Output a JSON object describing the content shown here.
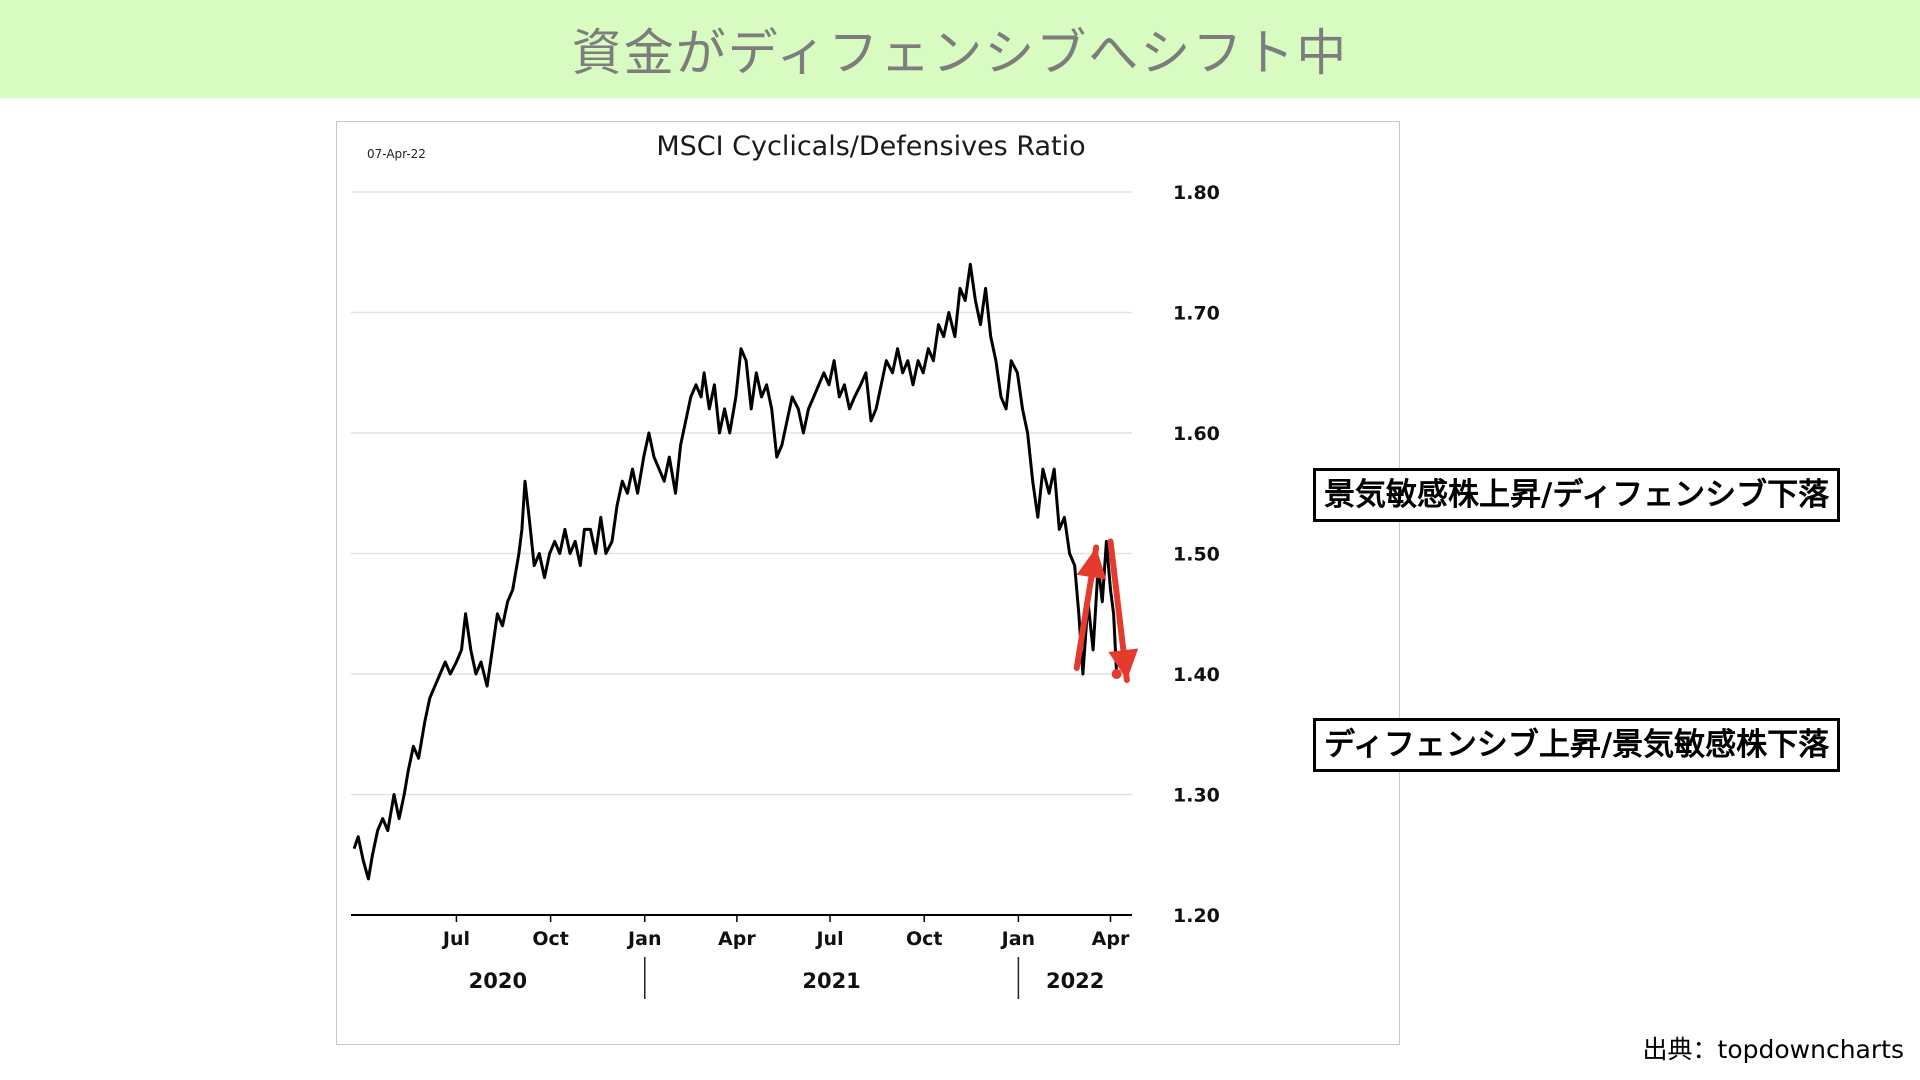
{
  "header": {
    "title": "資金がディフェンシブへシフト中"
  },
  "chart_data": {
    "type": "line",
    "title": "MSCI Cyclicals/Defensives Ratio",
    "date_label": "07-Apr-22",
    "ylim": [
      1.2,
      1.8
    ],
    "y_ticks": [
      1.2,
      1.3,
      1.4,
      1.5,
      1.6,
      1.7,
      1.8
    ],
    "y_tick_labels": [
      "1.20",
      "1.30",
      "1.40",
      "1.50",
      "1.60",
      "1.70",
      "1.80"
    ],
    "x_tick_labels": [
      "Jul",
      "Oct",
      "Jan",
      "Apr",
      "Jul",
      "Oct",
      "Jan",
      "Apr"
    ],
    "x_tick_dates": [
      "2020-07-01",
      "2020-10-01",
      "2021-01-01",
      "2021-04-01",
      "2021-07-01",
      "2021-10-01",
      "2022-01-01",
      "2022-04-01"
    ],
    "year_labels": [
      "2020",
      "2021",
      "2022"
    ],
    "grid": true,
    "series": [
      {
        "values": [
          [
            "2020-03-23",
            1.255
          ],
          [
            "2020-03-27",
            1.265
          ],
          [
            "2020-04-01",
            1.245
          ],
          [
            "2020-04-06",
            1.23
          ],
          [
            "2020-04-10",
            1.25
          ],
          [
            "2020-04-15",
            1.27
          ],
          [
            "2020-04-20",
            1.28
          ],
          [
            "2020-04-25",
            1.27
          ],
          [
            "2020-05-01",
            1.3
          ],
          [
            "2020-05-06",
            1.28
          ],
          [
            "2020-05-11",
            1.3
          ],
          [
            "2020-05-15",
            1.32
          ],
          [
            "2020-05-20",
            1.34
          ],
          [
            "2020-05-25",
            1.33
          ],
          [
            "2020-05-31",
            1.36
          ],
          [
            "2020-06-05",
            1.38
          ],
          [
            "2020-06-10",
            1.39
          ],
          [
            "2020-06-15",
            1.4
          ],
          [
            "2020-06-20",
            1.41
          ],
          [
            "2020-06-25",
            1.4
          ],
          [
            "2020-07-01",
            1.41
          ],
          [
            "2020-07-06",
            1.42
          ],
          [
            "2020-07-10",
            1.45
          ],
          [
            "2020-07-15",
            1.42
          ],
          [
            "2020-07-20",
            1.4
          ],
          [
            "2020-07-25",
            1.41
          ],
          [
            "2020-07-31",
            1.39
          ],
          [
            "2020-08-05",
            1.42
          ],
          [
            "2020-08-10",
            1.45
          ],
          [
            "2020-08-15",
            1.44
          ],
          [
            "2020-08-20",
            1.46
          ],
          [
            "2020-08-25",
            1.47
          ],
          [
            "2020-08-31",
            1.5
          ],
          [
            "2020-09-03",
            1.52
          ],
          [
            "2020-09-06",
            1.56
          ],
          [
            "2020-09-10",
            1.53
          ],
          [
            "2020-09-15",
            1.49
          ],
          [
            "2020-09-20",
            1.5
          ],
          [
            "2020-09-25",
            1.48
          ],
          [
            "2020-09-30",
            1.5
          ],
          [
            "2020-10-05",
            1.51
          ],
          [
            "2020-10-10",
            1.5
          ],
          [
            "2020-10-15",
            1.52
          ],
          [
            "2020-10-20",
            1.5
          ],
          [
            "2020-10-25",
            1.51
          ],
          [
            "2020-10-30",
            1.49
          ],
          [
            "2020-11-03",
            1.52
          ],
          [
            "2020-11-09",
            1.52
          ],
          [
            "2020-11-14",
            1.5
          ],
          [
            "2020-11-19",
            1.53
          ],
          [
            "2020-11-24",
            1.5
          ],
          [
            "2020-11-30",
            1.51
          ],
          [
            "2020-12-05",
            1.54
          ],
          [
            "2020-12-10",
            1.56
          ],
          [
            "2020-12-15",
            1.55
          ],
          [
            "2020-12-20",
            1.57
          ],
          [
            "2020-12-25",
            1.55
          ],
          [
            "2020-12-31",
            1.58
          ],
          [
            "2021-01-05",
            1.6
          ],
          [
            "2021-01-10",
            1.58
          ],
          [
            "2021-01-15",
            1.57
          ],
          [
            "2021-01-20",
            1.56
          ],
          [
            "2021-01-25",
            1.58
          ],
          [
            "2021-01-31",
            1.55
          ],
          [
            "2021-02-05",
            1.59
          ],
          [
            "2021-02-10",
            1.61
          ],
          [
            "2021-02-15",
            1.63
          ],
          [
            "2021-02-20",
            1.64
          ],
          [
            "2021-02-25",
            1.63
          ],
          [
            "2021-02-28",
            1.65
          ],
          [
            "2021-03-05",
            1.62
          ],
          [
            "2021-03-10",
            1.64
          ],
          [
            "2021-03-15",
            1.6
          ],
          [
            "2021-03-20",
            1.62
          ],
          [
            "2021-03-25",
            1.6
          ],
          [
            "2021-03-31",
            1.63
          ],
          [
            "2021-04-05",
            1.67
          ],
          [
            "2021-04-10",
            1.66
          ],
          [
            "2021-04-15",
            1.62
          ],
          [
            "2021-04-20",
            1.65
          ],
          [
            "2021-04-25",
            1.63
          ],
          [
            "2021-04-30",
            1.64
          ],
          [
            "2021-05-05",
            1.62
          ],
          [
            "2021-05-10",
            1.58
          ],
          [
            "2021-05-15",
            1.59
          ],
          [
            "2021-05-20",
            1.61
          ],
          [
            "2021-05-25",
            1.63
          ],
          [
            "2021-05-31",
            1.62
          ],
          [
            "2021-06-05",
            1.6
          ],
          [
            "2021-06-10",
            1.62
          ],
          [
            "2021-06-15",
            1.63
          ],
          [
            "2021-06-20",
            1.64
          ],
          [
            "2021-06-25",
            1.65
          ],
          [
            "2021-06-30",
            1.64
          ],
          [
            "2021-07-05",
            1.66
          ],
          [
            "2021-07-10",
            1.63
          ],
          [
            "2021-07-15",
            1.64
          ],
          [
            "2021-07-20",
            1.62
          ],
          [
            "2021-07-25",
            1.63
          ],
          [
            "2021-07-31",
            1.64
          ],
          [
            "2021-08-05",
            1.65
          ],
          [
            "2021-08-10",
            1.61
          ],
          [
            "2021-08-15",
            1.62
          ],
          [
            "2021-08-20",
            1.64
          ],
          [
            "2021-08-25",
            1.66
          ],
          [
            "2021-08-31",
            1.65
          ],
          [
            "2021-09-05",
            1.67
          ],
          [
            "2021-09-10",
            1.65
          ],
          [
            "2021-09-15",
            1.66
          ],
          [
            "2021-09-20",
            1.64
          ],
          [
            "2021-09-25",
            1.66
          ],
          [
            "2021-09-30",
            1.65
          ],
          [
            "2021-10-05",
            1.67
          ],
          [
            "2021-10-10",
            1.66
          ],
          [
            "2021-10-15",
            1.69
          ],
          [
            "2021-10-20",
            1.68
          ],
          [
            "2021-10-25",
            1.7
          ],
          [
            "2021-10-31",
            1.68
          ],
          [
            "2021-11-05",
            1.72
          ],
          [
            "2021-11-10",
            1.71
          ],
          [
            "2021-11-15",
            1.74
          ],
          [
            "2021-11-20",
            1.71
          ],
          [
            "2021-11-25",
            1.69
          ],
          [
            "2021-11-30",
            1.72
          ],
          [
            "2021-12-05",
            1.68
          ],
          [
            "2021-12-10",
            1.66
          ],
          [
            "2021-12-15",
            1.63
          ],
          [
            "2021-12-20",
            1.62
          ],
          [
            "2021-12-25",
            1.66
          ],
          [
            "2021-12-31",
            1.65
          ],
          [
            "2022-01-05",
            1.62
          ],
          [
            "2022-01-10",
            1.6
          ],
          [
            "2022-01-15",
            1.56
          ],
          [
            "2022-01-20",
            1.53
          ],
          [
            "2022-01-25",
            1.57
          ],
          [
            "2022-01-31",
            1.55
          ],
          [
            "2022-02-05",
            1.57
          ],
          [
            "2022-02-10",
            1.52
          ],
          [
            "2022-02-15",
            1.53
          ],
          [
            "2022-02-20",
            1.5
          ],
          [
            "2022-02-25",
            1.49
          ],
          [
            "2022-03-01",
            1.45
          ],
          [
            "2022-03-05",
            1.4
          ],
          [
            "2022-03-10",
            1.46
          ],
          [
            "2022-03-15",
            1.42
          ],
          [
            "2022-03-20",
            1.49
          ],
          [
            "2022-03-24",
            1.46
          ],
          [
            "2022-03-28",
            1.51
          ],
          [
            "2022-04-01",
            1.47
          ],
          [
            "2022-04-04",
            1.45
          ],
          [
            "2022-04-07",
            1.4
          ]
        ]
      }
    ],
    "annotations": [
      "景気敏感株上昇/ディフェンシブ下落",
      "ディフェンシブ上昇/景気敏感株下落"
    ],
    "annotation_color": "#e53a2e"
  },
  "footer": {
    "source": "出典：topdowncharts"
  }
}
